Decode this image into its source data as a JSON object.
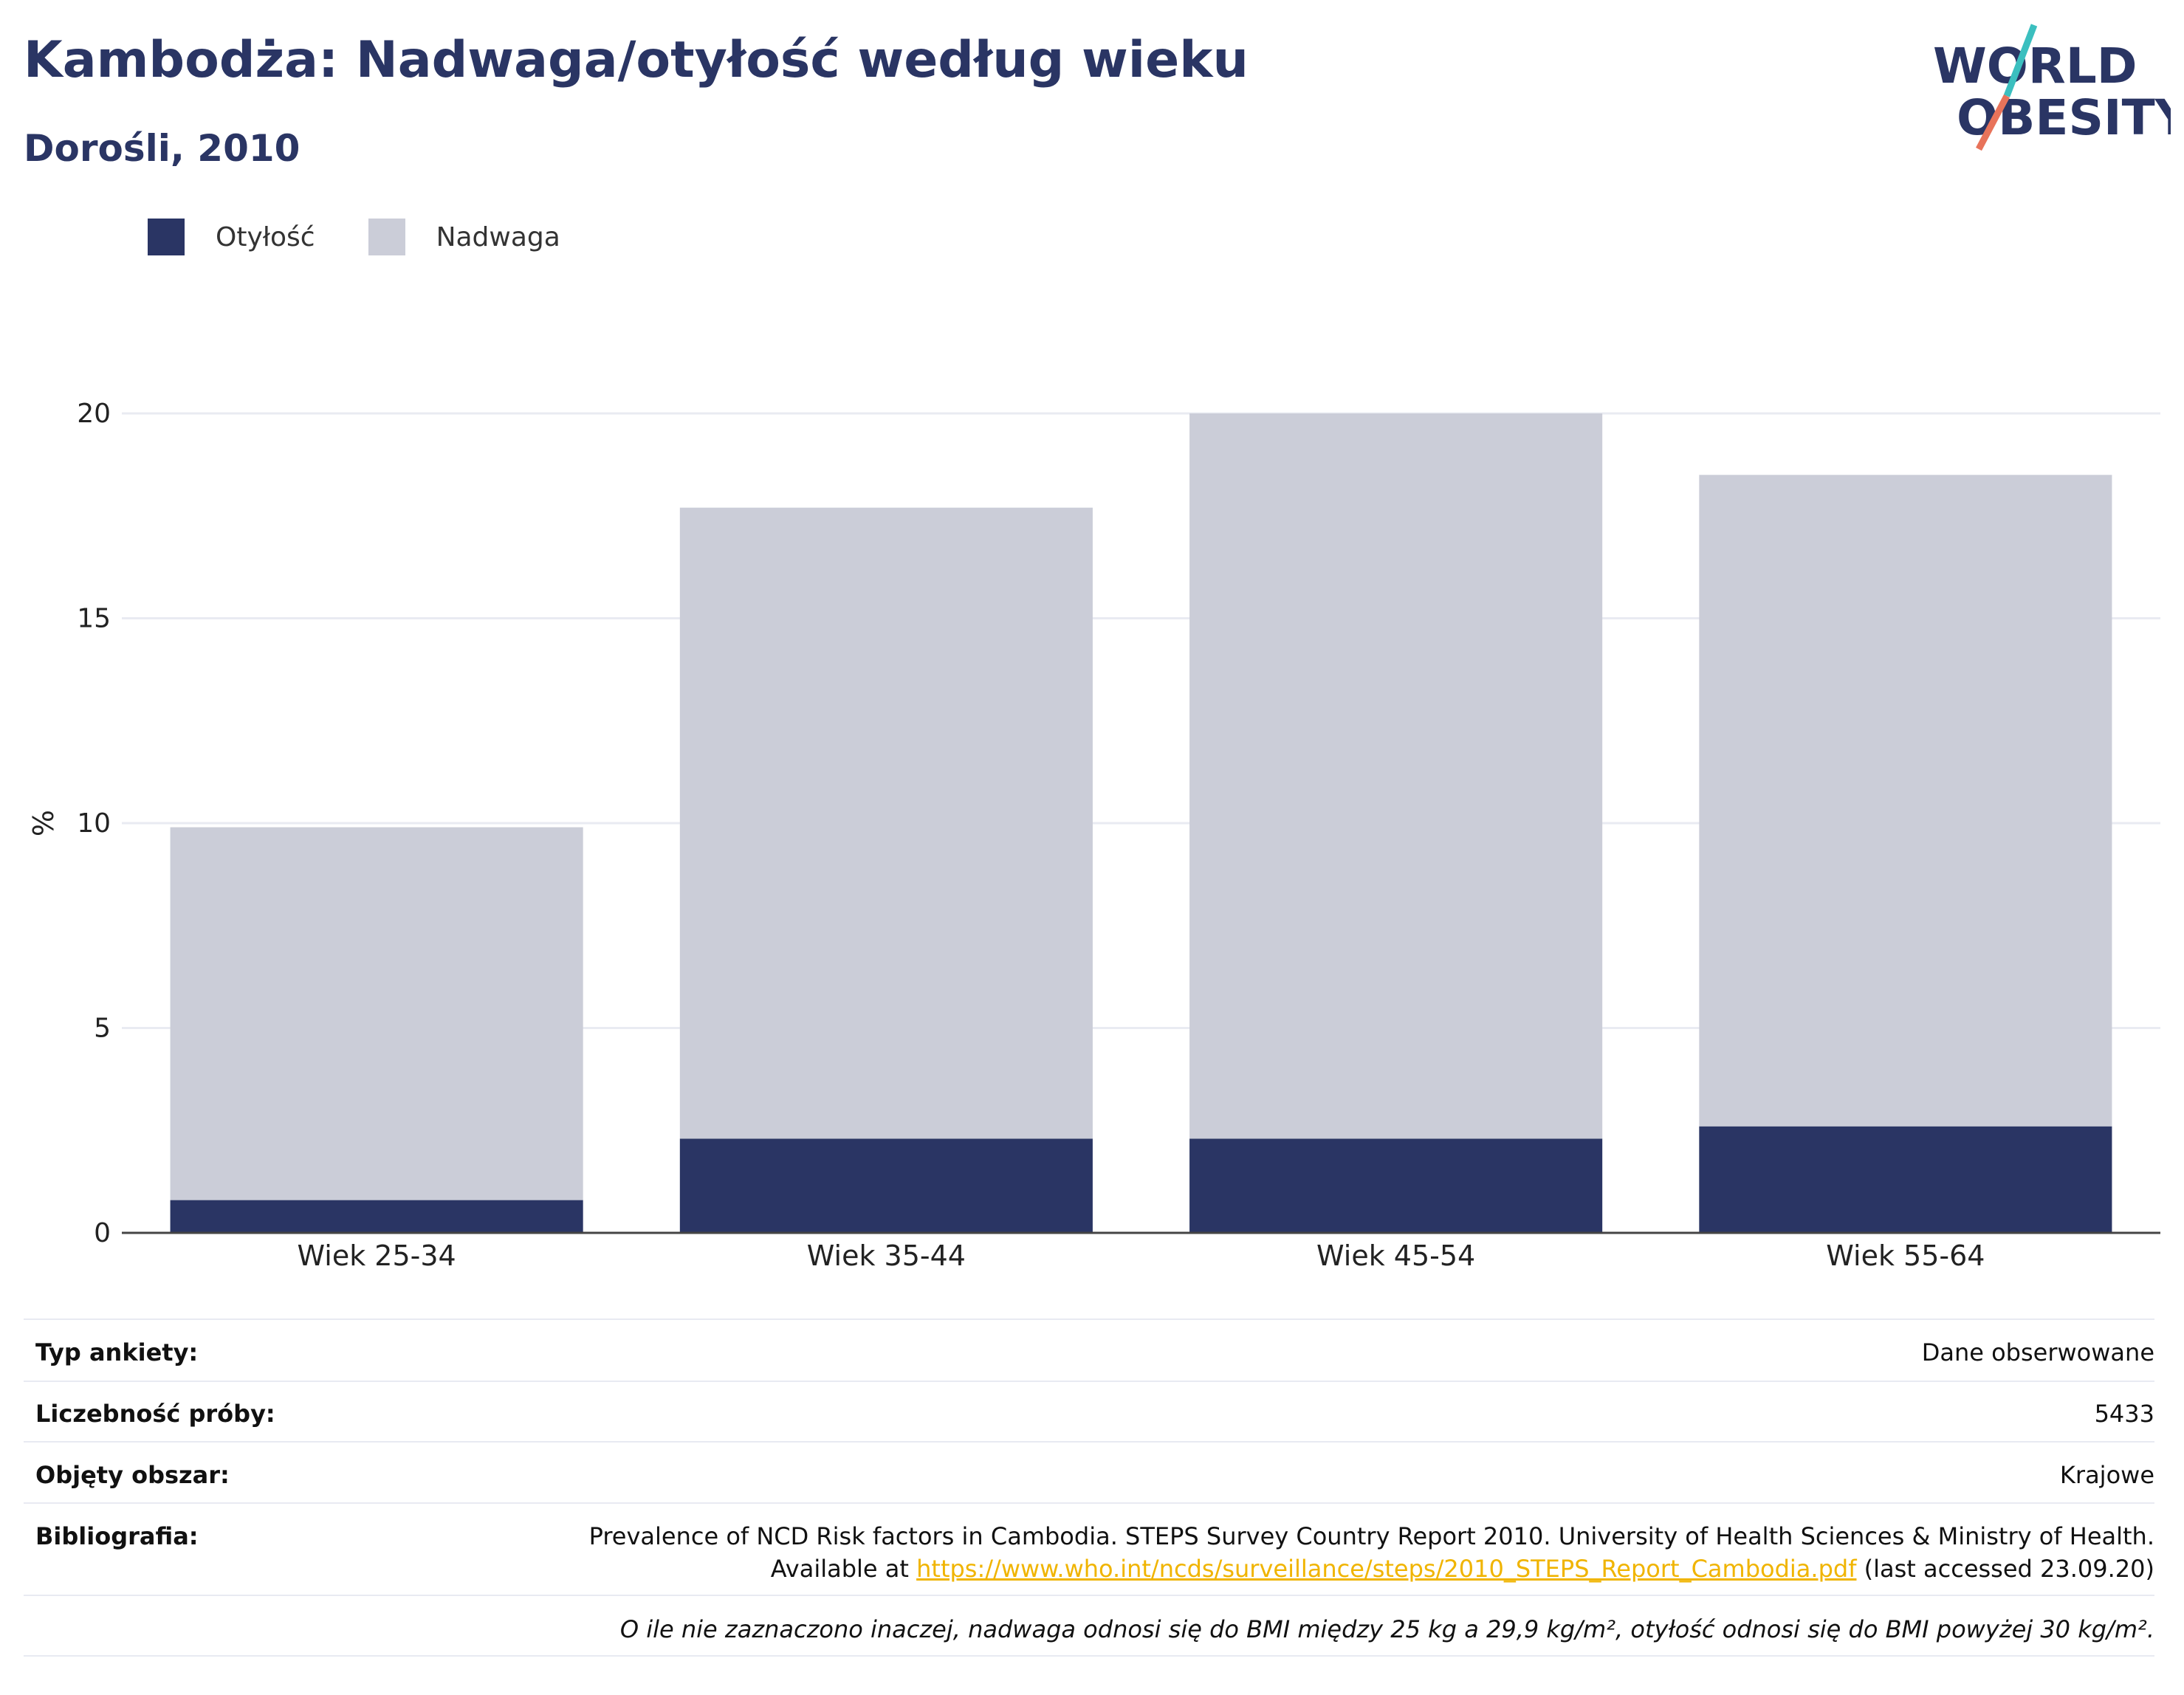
{
  "header": {
    "title": "Kambodża: Nadwaga/otyłość według wieku",
    "subtitle": "Dorośli, 2010",
    "logo_line1": "WORLD",
    "logo_line2": "OBESITY"
  },
  "colors": {
    "obesity": "#2a3564",
    "overweight": "#cbcdd8",
    "title": "#2a3564",
    "link": "#f0b400",
    "logo_teal": "#3bbfbf",
    "logo_coral": "#e8735a"
  },
  "chart_data": {
    "type": "bar",
    "stacked": true,
    "categories": [
      "Wiek 25-34",
      "Wiek 35-44",
      "Wiek 45-54",
      "Wiek 55-64"
    ],
    "series": [
      {
        "name": "Otyłość",
        "values": [
          0.8,
          2.3,
          2.3,
          2.6
        ]
      },
      {
        "name": "Nadwaga",
        "values": [
          9.1,
          15.4,
          17.7,
          15.9
        ]
      }
    ],
    "ylabel": "%",
    "ylim": [
      0,
      20
    ],
    "yticks": [
      0,
      5,
      10,
      15,
      20
    ],
    "grid": true,
    "legend_position": "top-left"
  },
  "info": {
    "survey_label": "Typ ankiety:",
    "survey_value": "Dane obserwowane",
    "sample_label": "Liczebność próby:",
    "sample_value": "5433",
    "area_label": "Objęty obszar:",
    "area_value": "Krajowe",
    "biblio_label": "Bibliografia:",
    "biblio_line1": "Prevalence of NCD Risk factors in Cambodia. STEPS Survey Country Report 2010. University of Health Sciences & Ministry of Health.",
    "biblio_line2_prefix": "Available at ",
    "biblio_link": "https://www.who.int/ncds/surveillance/steps/2010_STEPS_Report_Cambodia.pdf",
    "biblio_line2_suffix": " (last accessed 23.09.20)",
    "footnote": "O ile nie zaznaczono inaczej, nadwaga odnosi się do BMI między 25 kg a 29,9 kg/m², otyłość odnosi się do BMI powyżej 30 kg/m²."
  }
}
